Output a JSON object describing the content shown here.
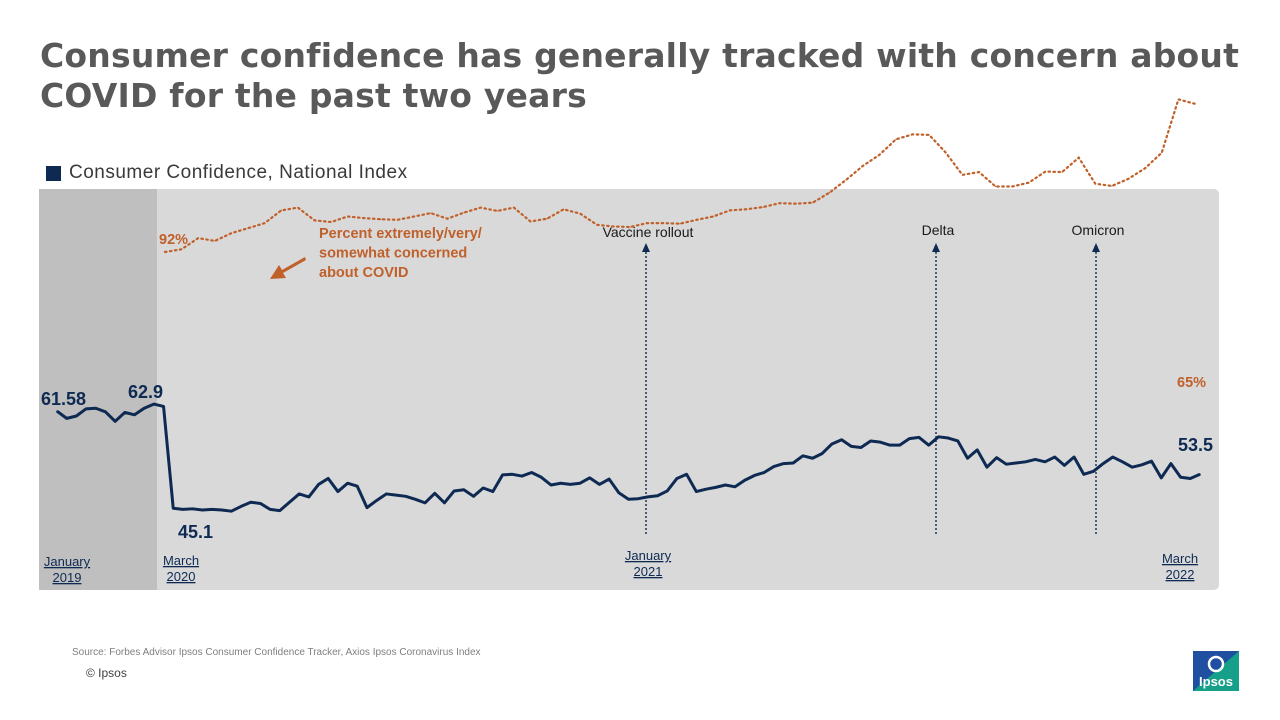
{
  "title": "Consumer confidence has generally tracked with concern about COVID for the past two years",
  "legend": {
    "label": "Consumer Confidence, National Index",
    "color": "#0e2a52"
  },
  "source": "Source: Forbes Advisor Ipsos Consumer Confidence Tracker, Axios Ipsos Coronavirus Index",
  "copyright": "© Ipsos",
  "logo_text": "Ipsos",
  "colors": {
    "confidence": "#0e2a52",
    "concern": "#c0602a",
    "panel": "#d9d9d9",
    "shade": "#bfbfbf"
  },
  "chart_data": {
    "type": "line",
    "x_ticks": [
      {
        "month": "January",
        "year": "2019"
      },
      {
        "month": "March",
        "year": "2020"
      },
      {
        "month": "January",
        "year": "2021"
      },
      {
        "month": "March",
        "year": "2022"
      }
    ],
    "events": [
      "Vaccine rollout",
      "Delta",
      "Omicron"
    ],
    "concern_annotation": [
      "Percent extremely/very/",
      "somewhat concerned",
      "about COVID"
    ],
    "series": [
      {
        "name": "Consumer Confidence, National Index",
        "style": "solid",
        "labels": [
          {
            "text": "61.58"
          },
          {
            "text": "62.9"
          },
          {
            "text": "45.1"
          },
          {
            "text": "53.5"
          }
        ],
        "values": [
          61.6,
          60.4,
          60.8,
          62.0,
          62.1,
          61.5,
          59.9,
          61.4,
          61.0,
          62.1,
          62.8,
          62.4,
          45.3,
          45.1,
          45.2,
          45.0,
          45.1,
          45.0,
          44.8,
          45.6,
          46.3,
          46.1,
          45.1,
          44.9,
          46.3,
          47.7,
          47.2,
          49.3,
          50.3,
          48.1,
          49.5,
          49.0,
          45.4,
          46.6,
          47.7,
          47.5,
          47.3,
          46.8,
          46.2,
          47.8,
          46.2,
          48.2,
          48.4,
          47.3,
          48.7,
          48.1,
          50.9,
          51.0,
          50.7,
          51.3,
          50.5,
          49.2,
          49.5,
          49.3,
          49.5,
          50.4,
          49.3,
          50.2,
          47.9,
          46.8,
          46.9,
          47.2,
          47.4,
          48.2,
          50.3,
          51.0,
          48.1,
          48.5,
          48.8,
          49.2,
          48.9,
          50.0,
          50.8,
          51.3,
          52.3,
          52.8,
          52.9,
          54.1,
          53.7,
          54.5,
          56.1,
          56.8,
          55.7,
          55.5,
          56.6,
          56.4,
          55.9,
          55.9,
          57.0,
          57.2,
          55.9,
          57.3,
          57.1,
          56.6,
          53.7,
          55.1,
          52.2,
          53.8,
          52.7,
          52.9,
          53.1,
          53.5,
          53.1,
          53.9,
          52.5,
          53.9,
          51.0,
          51.5,
          52.8,
          53.9,
          53.1,
          52.2,
          52.6,
          53.2,
          50.4,
          52.8,
          50.5,
          50.3,
          51.0
        ]
      },
      {
        "name": "Percent extremely/very/ somewhat concerned about COVID",
        "style": "dotted",
        "unit": "%",
        "labels": [
          {
            "text": "92%"
          },
          {
            "text": "65%"
          }
        ],
        "values": [
          92,
          91.5,
          89.5,
          90.0,
          88.6,
          87.7,
          86.8,
          84.5,
          84.0,
          86.3,
          86.6,
          85.6,
          85.9,
          86.1,
          86.2,
          85.6,
          85.0,
          86.0,
          84.9,
          84.0,
          84.6,
          84.0,
          86.5,
          86.0,
          84.3,
          85.1,
          87.1,
          87.4,
          87.5,
          86.8,
          86.8,
          86.9,
          86.2,
          85.6,
          84.5,
          84.3,
          83.9,
          83.2,
          83.3,
          83.1,
          81.3,
          79.0,
          76.5,
          74.5,
          71.7,
          70.8,
          70.9,
          74.1,
          78.1,
          77.6,
          80.2,
          80.2,
          79.5,
          77.5,
          77.6,
          75.0,
          79.7,
          80.1,
          78.8,
          76.9,
          74.1,
          64.5,
          65.3
        ]
      }
    ]
  }
}
